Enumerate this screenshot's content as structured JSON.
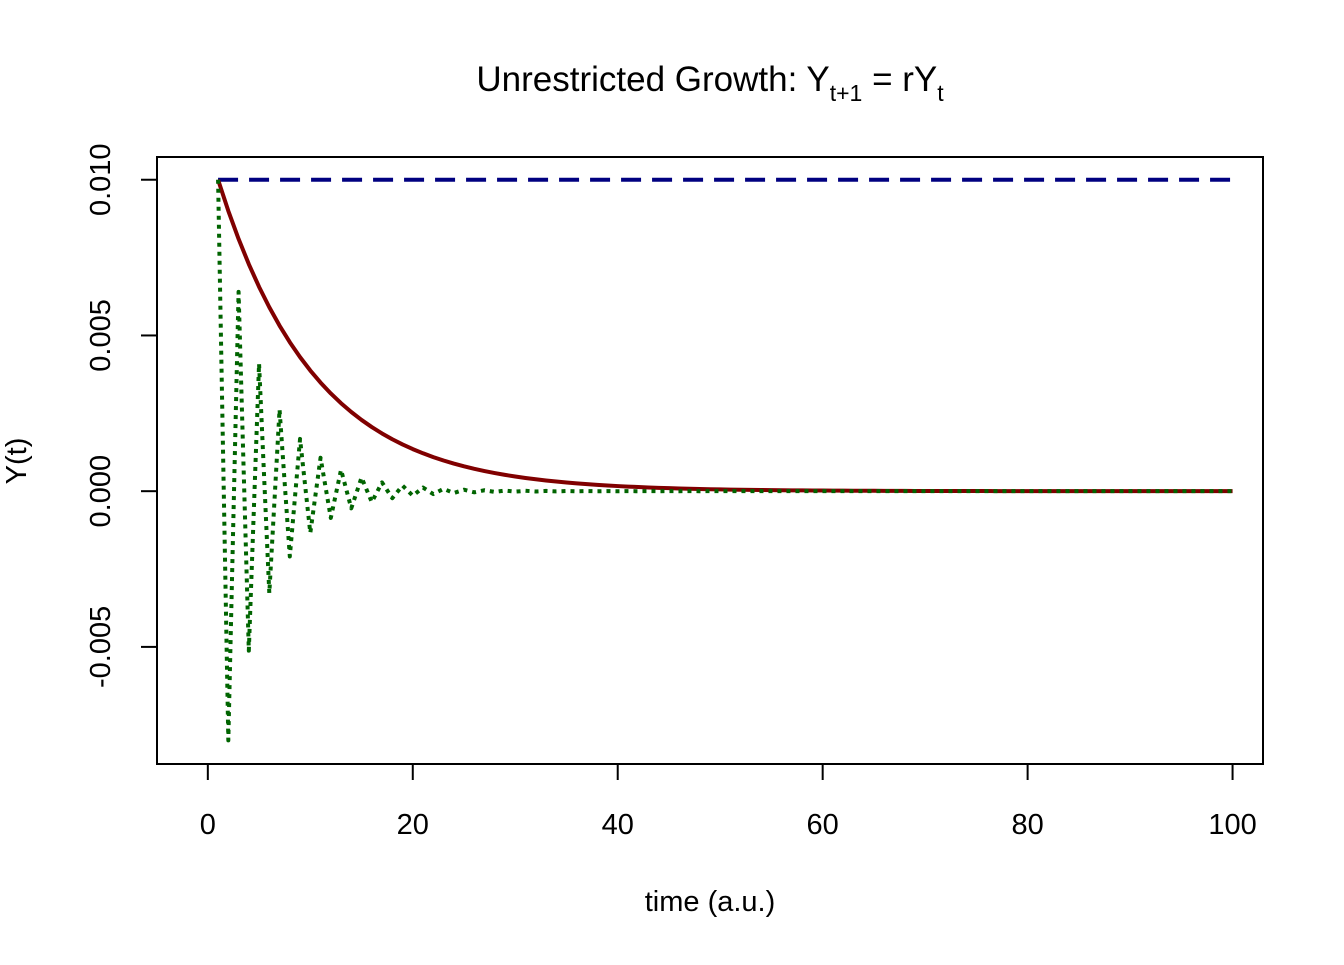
{
  "chart_data": {
    "type": "line",
    "title": {
      "main": "Unrestricted Growth: Y",
      "sub1": "t+1",
      "mid": " = rY",
      "sub2": "t"
    },
    "xlabel": "time (a.u.)",
    "ylabel": "Y(t)",
    "xlim": [
      -4.96,
      102.97
    ],
    "ylim": [
      -0.00876,
      0.01073
    ],
    "x_ticks": [
      0,
      20,
      40,
      60,
      80,
      100
    ],
    "x_tick_labels": [
      "0",
      "20",
      "40",
      "60",
      "80",
      "100"
    ],
    "y_ticks": [
      -0.005,
      0.0,
      0.005,
      0.01
    ],
    "y_tick_labels": [
      "-0.005",
      "0.000",
      "0.005",
      "0.010"
    ],
    "grid": false,
    "legend": null,
    "x_start": 1,
    "x_end": 100,
    "y0": 0.01,
    "series": [
      {
        "r": 1.0,
        "color": "#000080",
        "style": "dashed",
        "points": [
          [
            1,
            0.01
          ],
          [
            100,
            0.01
          ]
        ]
      },
      {
        "r": 0.9,
        "color": "#800000",
        "style": "solid"
      },
      {
        "r": -0.8,
        "color": "#006400",
        "style": "dotted"
      }
    ]
  }
}
